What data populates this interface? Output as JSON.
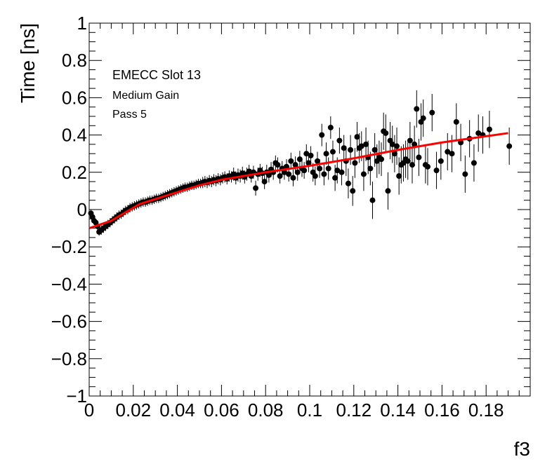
{
  "chart_data": {
    "type": "scatter",
    "title": "",
    "xlabel": "f3",
    "ylabel": "Time [ns]",
    "xlim": [
      0,
      0.2
    ],
    "ylim": [
      -1,
      1
    ],
    "x_tick_labels": [
      "0",
      "0.02",
      "0.04",
      "0.06",
      "0.08",
      "0.1",
      "0.12",
      "0.14",
      "0.16",
      "0.18"
    ],
    "y_tick_labels": [
      "−1",
      "−0.8",
      "−0.6",
      "−0.4",
      "−0.2",
      "0",
      "0.2",
      "0.4",
      "0.6",
      "0.8",
      "1"
    ],
    "annotations": [
      "EMECC Slot 13",
      "Medium Gain",
      "Pass 5"
    ],
    "grid": false,
    "colors": {
      "points": "#000000",
      "fit": "#ff0000"
    },
    "series": [
      {
        "kind": "points-with-errors",
        "points": [
          [
            0.0008,
            -0.02,
            0.02
          ],
          [
            0.0015,
            -0.04,
            0.02
          ],
          [
            0.0022,
            -0.06,
            0.02
          ],
          [
            0.003,
            -0.07,
            0.02
          ],
          [
            0.0038,
            -0.09,
            0.02
          ],
          [
            0.0045,
            -0.12,
            0.02
          ],
          [
            0.0055,
            -0.11,
            0.025
          ],
          [
            0.0065,
            -0.1,
            0.025
          ],
          [
            0.0075,
            -0.09,
            0.025
          ],
          [
            0.0085,
            -0.08,
            0.025
          ],
          [
            0.0095,
            -0.07,
            0.025
          ],
          [
            0.0105,
            -0.06,
            0.025
          ],
          [
            0.0115,
            -0.05,
            0.025
          ],
          [
            0.0125,
            -0.04,
            0.025
          ],
          [
            0.0135,
            -0.03,
            0.025
          ],
          [
            0.0145,
            -0.025,
            0.025
          ],
          [
            0.0155,
            -0.015,
            0.025
          ],
          [
            0.0165,
            -0.005,
            0.025
          ],
          [
            0.0175,
            0.0,
            0.025
          ],
          [
            0.0185,
            0.01,
            0.025
          ],
          [
            0.0195,
            0.015,
            0.025
          ],
          [
            0.0205,
            0.02,
            0.025
          ],
          [
            0.0215,
            0.025,
            0.025
          ],
          [
            0.0225,
            0.03,
            0.025
          ],
          [
            0.0235,
            0.035,
            0.025
          ],
          [
            0.0245,
            0.04,
            0.025
          ],
          [
            0.0255,
            0.04,
            0.025
          ],
          [
            0.0265,
            0.045,
            0.025
          ],
          [
            0.0275,
            0.05,
            0.025
          ],
          [
            0.0285,
            0.05,
            0.025
          ],
          [
            0.0295,
            0.055,
            0.025
          ],
          [
            0.0305,
            0.06,
            0.025
          ],
          [
            0.0315,
            0.06,
            0.025
          ],
          [
            0.0325,
            0.065,
            0.025
          ],
          [
            0.0335,
            0.07,
            0.025
          ],
          [
            0.0345,
            0.075,
            0.025
          ],
          [
            0.0355,
            0.08,
            0.025
          ],
          [
            0.0365,
            0.085,
            0.025
          ],
          [
            0.0375,
            0.09,
            0.025
          ],
          [
            0.0385,
            0.095,
            0.025
          ],
          [
            0.0395,
            0.1,
            0.025
          ],
          [
            0.0405,
            0.105,
            0.025
          ],
          [
            0.0415,
            0.11,
            0.025
          ],
          [
            0.0425,
            0.115,
            0.025
          ],
          [
            0.0435,
            0.12,
            0.025
          ],
          [
            0.0445,
            0.12,
            0.025
          ],
          [
            0.0455,
            0.125,
            0.025
          ],
          [
            0.0465,
            0.13,
            0.025
          ],
          [
            0.0475,
            0.13,
            0.025
          ],
          [
            0.0485,
            0.135,
            0.025
          ],
          [
            0.0495,
            0.14,
            0.025
          ],
          [
            0.0505,
            0.14,
            0.025
          ],
          [
            0.0515,
            0.145,
            0.03
          ],
          [
            0.0525,
            0.15,
            0.03
          ],
          [
            0.0535,
            0.145,
            0.03
          ],
          [
            0.0545,
            0.155,
            0.03
          ],
          [
            0.0555,
            0.15,
            0.03
          ],
          [
            0.0565,
            0.16,
            0.03
          ],
          [
            0.0575,
            0.155,
            0.03
          ],
          [
            0.0585,
            0.165,
            0.03
          ],
          [
            0.0595,
            0.16,
            0.03
          ],
          [
            0.0605,
            0.17,
            0.03
          ],
          [
            0.0615,
            0.175,
            0.03
          ],
          [
            0.0625,
            0.165,
            0.03
          ],
          [
            0.0635,
            0.18,
            0.03
          ],
          [
            0.0645,
            0.175,
            0.03
          ],
          [
            0.0655,
            0.19,
            0.035
          ],
          [
            0.0665,
            0.17,
            0.035
          ],
          [
            0.0675,
            0.185,
            0.035
          ],
          [
            0.0685,
            0.18,
            0.035
          ],
          [
            0.0695,
            0.195,
            0.035
          ],
          [
            0.0705,
            0.175,
            0.035
          ],
          [
            0.0715,
            0.19,
            0.035
          ],
          [
            0.0725,
            0.205,
            0.035
          ],
          [
            0.0735,
            0.18,
            0.035
          ],
          [
            0.0745,
            0.2,
            0.035
          ],
          [
            0.0755,
            0.115,
            0.04
          ],
          [
            0.0765,
            0.19,
            0.035
          ],
          [
            0.0775,
            0.21,
            0.035
          ],
          [
            0.0785,
            0.195,
            0.035
          ],
          [
            0.0795,
            0.15,
            0.04
          ],
          [
            0.0805,
            0.2,
            0.04
          ],
          [
            0.0815,
            0.185,
            0.04
          ],
          [
            0.0825,
            0.215,
            0.04
          ],
          [
            0.0835,
            0.2,
            0.04
          ],
          [
            0.0845,
            0.25,
            0.04
          ],
          [
            0.0855,
            0.24,
            0.04
          ],
          [
            0.0865,
            0.18,
            0.04
          ],
          [
            0.0875,
            0.22,
            0.04
          ],
          [
            0.0885,
            0.2,
            0.04
          ],
          [
            0.0895,
            0.23,
            0.04
          ],
          [
            0.0905,
            0.19,
            0.04
          ],
          [
            0.0915,
            0.26,
            0.045
          ],
          [
            0.0925,
            0.17,
            0.045
          ],
          [
            0.0935,
            0.24,
            0.045
          ],
          [
            0.0945,
            0.2,
            0.045
          ],
          [
            0.0955,
            0.27,
            0.045
          ],
          [
            0.0965,
            0.22,
            0.045
          ],
          [
            0.0975,
            0.21,
            0.045
          ],
          [
            0.0985,
            0.3,
            0.05
          ],
          [
            0.0995,
            0.25,
            0.05
          ],
          [
            0.1005,
            0.29,
            0.05
          ],
          [
            0.1015,
            0.2,
            0.05
          ],
          [
            0.1025,
            0.18,
            0.05
          ],
          [
            0.1035,
            0.26,
            0.05
          ],
          [
            0.1045,
            0.22,
            0.05
          ],
          [
            0.1055,
            0.4,
            0.06
          ],
          [
            0.1065,
            0.19,
            0.06
          ],
          [
            0.1075,
            0.3,
            0.06
          ],
          [
            0.1085,
            0.22,
            0.06
          ],
          [
            0.1095,
            0.44,
            0.06
          ],
          [
            0.1105,
            0.31,
            0.06
          ],
          [
            0.1115,
            0.17,
            0.07
          ],
          [
            0.1125,
            0.21,
            0.07
          ],
          [
            0.1135,
            0.37,
            0.07
          ],
          [
            0.1145,
            0.2,
            0.07
          ],
          [
            0.1155,
            0.33,
            0.07
          ],
          [
            0.1165,
            0.26,
            0.08
          ],
          [
            0.1175,
            0.14,
            0.08
          ],
          [
            0.1185,
            0.32,
            0.08
          ],
          [
            0.1195,
            0.1,
            0.08
          ],
          [
            0.1205,
            0.25,
            0.08
          ],
          [
            0.1215,
            0.39,
            0.08
          ],
          [
            0.1225,
            0.33,
            0.08
          ],
          [
            0.1235,
            0.34,
            0.08
          ],
          [
            0.1245,
            0.19,
            0.09
          ],
          [
            0.1255,
            0.35,
            0.09
          ],
          [
            0.1265,
            0.28,
            0.09
          ],
          [
            0.1275,
            0.22,
            0.09
          ],
          [
            0.1285,
            0.05,
            0.1
          ],
          [
            0.1295,
            0.32,
            0.09
          ],
          [
            0.1305,
            0.26,
            0.09
          ],
          [
            0.1315,
            0.28,
            0.09
          ],
          [
            0.1325,
            0.27,
            0.09
          ],
          [
            0.1335,
            0.42,
            0.1
          ],
          [
            0.1345,
            0.41,
            0.1
          ],
          [
            0.1355,
            0.1,
            0.1
          ],
          [
            0.1365,
            0.37,
            0.1
          ],
          [
            0.1375,
            0.35,
            0.1
          ],
          [
            0.1385,
            0.3,
            0.1
          ],
          [
            0.1395,
            0.34,
            0.1
          ],
          [
            0.1405,
            0.18,
            0.1
          ],
          [
            0.1415,
            0.24,
            0.1
          ],
          [
            0.1425,
            0.25,
            0.1
          ],
          [
            0.1435,
            0.27,
            0.1
          ],
          [
            0.1445,
            0.26,
            0.1
          ],
          [
            0.1455,
            0.37,
            0.1
          ],
          [
            0.1465,
            0.24,
            0.1
          ],
          [
            0.1475,
            0.35,
            0.1
          ],
          [
            0.1485,
            0.54,
            0.1
          ],
          [
            0.1495,
            0.28,
            0.1
          ],
          [
            0.1505,
            0.47,
            0.1
          ],
          [
            0.1515,
            0.49,
            0.1
          ],
          [
            0.1525,
            0.24,
            0.1
          ],
          [
            0.1535,
            0.23,
            0.1
          ],
          [
            0.1555,
            0.52,
            0.1
          ],
          [
            0.1575,
            0.21,
            0.1
          ],
          [
            0.1595,
            0.26,
            0.1
          ],
          [
            0.1625,
            0.31,
            0.1
          ],
          [
            0.1645,
            0.3,
            0.1
          ],
          [
            0.1665,
            0.47,
            0.1
          ],
          [
            0.1685,
            0.36,
            0.1
          ],
          [
            0.1705,
            0.19,
            0.1
          ],
          [
            0.1725,
            0.38,
            0.1
          ],
          [
            0.1745,
            0.25,
            0.1
          ],
          [
            0.1765,
            0.41,
            0.1
          ],
          [
            0.1785,
            0.4,
            0.1
          ],
          [
            0.1815,
            0.43,
            0.1
          ],
          [
            0.1905,
            0.34,
            0.1
          ]
        ]
      },
      {
        "kind": "fit-line",
        "points": [
          [
            0.0,
            -0.1
          ],
          [
            0.01,
            -0.06
          ],
          [
            0.023,
            0.03
          ],
          [
            0.035,
            0.075
          ],
          [
            0.05,
            0.13
          ],
          [
            0.06,
            0.16
          ],
          [
            0.08,
            0.2
          ],
          [
            0.1,
            0.235
          ],
          [
            0.12,
            0.275
          ],
          [
            0.14,
            0.32
          ],
          [
            0.16,
            0.36
          ],
          [
            0.19,
            0.41
          ]
        ]
      }
    ]
  }
}
